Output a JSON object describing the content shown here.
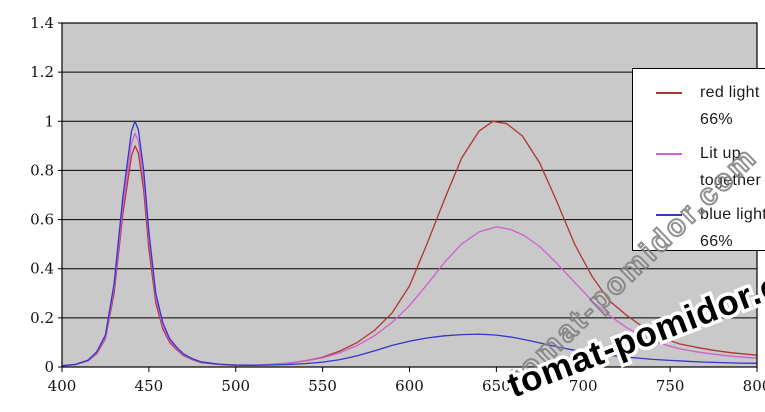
{
  "watermarks": {
    "outline_text": "tomat-pomidor.com",
    "solid_text": "tomat-pomidor.com"
  },
  "legend": {
    "items": [
      {
        "name": "red light 66%",
        "line1": "red light",
        "line2": "66%",
        "color": "#b03434"
      },
      {
        "name": "Lit up together",
        "line1": "Lit up",
        "line2": "together",
        "color": "#d05fd0"
      },
      {
        "name": "blue light 66%",
        "line1": "blue light",
        "line2": "66%",
        "color": "#3535c8"
      }
    ]
  },
  "chart_data": {
    "type": "line",
    "title": "",
    "xlabel": "",
    "ylabel": "",
    "xlim": [
      400,
      800
    ],
    "ylim": [
      0,
      1.4
    ],
    "x_ticks": [
      400,
      450,
      500,
      550,
      600,
      650,
      700,
      750,
      800
    ],
    "x_tick_labels": [
      "400",
      "450",
      "500",
      "550",
      "600",
      "650",
      "700",
      "750",
      "800"
    ],
    "y_ticks": [
      0,
      0.2,
      0.4,
      0.6,
      0.8,
      1,
      1.2,
      1.4
    ],
    "y_tick_labels": [
      "0",
      "0.2",
      "0.4",
      "0.6",
      "0.8",
      "1",
      "1.2",
      "1.4"
    ],
    "grid": "horizontal",
    "plot_bg": "#c9c9c9",
    "axis_color": "#000000",
    "legend_position": "right-overlay",
    "series": [
      {
        "name": "red light 66%",
        "color": "#b03434",
        "points": [
          [
            400,
            0.005
          ],
          [
            408,
            0.01
          ],
          [
            415,
            0.025
          ],
          [
            420,
            0.055
          ],
          [
            425,
            0.115
          ],
          [
            430,
            0.3
          ],
          [
            435,
            0.62
          ],
          [
            440,
            0.86
          ],
          [
            442,
            0.9
          ],
          [
            444,
            0.87
          ],
          [
            447,
            0.72
          ],
          [
            450,
            0.48
          ],
          [
            454,
            0.26
          ],
          [
            458,
            0.155
          ],
          [
            462,
            0.1
          ],
          [
            466,
            0.07
          ],
          [
            470,
            0.046
          ],
          [
            475,
            0.03
          ],
          [
            480,
            0.018
          ],
          [
            490,
            0.01
          ],
          [
            500,
            0.007
          ],
          [
            510,
            0.007
          ],
          [
            520,
            0.01
          ],
          [
            530,
            0.016
          ],
          [
            540,
            0.025
          ],
          [
            550,
            0.04
          ],
          [
            560,
            0.065
          ],
          [
            570,
            0.1
          ],
          [
            580,
            0.15
          ],
          [
            590,
            0.22
          ],
          [
            600,
            0.33
          ],
          [
            610,
            0.5
          ],
          [
            620,
            0.68
          ],
          [
            630,
            0.85
          ],
          [
            640,
            0.96
          ],
          [
            648,
            1.0
          ],
          [
            656,
            0.99
          ],
          [
            665,
            0.94
          ],
          [
            675,
            0.83
          ],
          [
            685,
            0.67
          ],
          [
            695,
            0.5
          ],
          [
            705,
            0.37
          ],
          [
            715,
            0.27
          ],
          [
            725,
            0.21
          ],
          [
            735,
            0.16
          ],
          [
            745,
            0.12
          ],
          [
            755,
            0.095
          ],
          [
            765,
            0.08
          ],
          [
            775,
            0.068
          ],
          [
            785,
            0.058
          ],
          [
            800,
            0.048
          ]
        ]
      },
      {
        "name": "Lit up together",
        "color": "#d05fd0",
        "points": [
          [
            400,
            0.005
          ],
          [
            408,
            0.01
          ],
          [
            415,
            0.026
          ],
          [
            420,
            0.058
          ],
          [
            425,
            0.12
          ],
          [
            430,
            0.32
          ],
          [
            435,
            0.65
          ],
          [
            440,
            0.91
          ],
          [
            442,
            0.95
          ],
          [
            444,
            0.92
          ],
          [
            447,
            0.76
          ],
          [
            450,
            0.52
          ],
          [
            454,
            0.28
          ],
          [
            458,
            0.165
          ],
          [
            462,
            0.107
          ],
          [
            466,
            0.074
          ],
          [
            470,
            0.049
          ],
          [
            475,
            0.032
          ],
          [
            480,
            0.02
          ],
          [
            490,
            0.011
          ],
          [
            500,
            0.008
          ],
          [
            510,
            0.008
          ],
          [
            520,
            0.011
          ],
          [
            530,
            0.016
          ],
          [
            540,
            0.024
          ],
          [
            550,
            0.037
          ],
          [
            560,
            0.058
          ],
          [
            570,
            0.088
          ],
          [
            580,
            0.128
          ],
          [
            590,
            0.182
          ],
          [
            600,
            0.25
          ],
          [
            610,
            0.335
          ],
          [
            620,
            0.425
          ],
          [
            630,
            0.5
          ],
          [
            640,
            0.55
          ],
          [
            650,
            0.57
          ],
          [
            658,
            0.56
          ],
          [
            666,
            0.535
          ],
          [
            675,
            0.49
          ],
          [
            685,
            0.42
          ],
          [
            695,
            0.345
          ],
          [
            705,
            0.27
          ],
          [
            715,
            0.21
          ],
          [
            725,
            0.16
          ],
          [
            735,
            0.123
          ],
          [
            745,
            0.095
          ],
          [
            755,
            0.075
          ],
          [
            765,
            0.062
          ],
          [
            775,
            0.052
          ],
          [
            785,
            0.044
          ],
          [
            800,
            0.036
          ]
        ]
      },
      {
        "name": "blue light 66%",
        "color": "#3535c8",
        "points": [
          [
            400,
            0.005
          ],
          [
            408,
            0.011
          ],
          [
            415,
            0.028
          ],
          [
            420,
            0.062
          ],
          [
            425,
            0.13
          ],
          [
            430,
            0.34
          ],
          [
            435,
            0.69
          ],
          [
            440,
            0.96
          ],
          [
            442,
            1.0
          ],
          [
            444,
            0.965
          ],
          [
            447,
            0.8
          ],
          [
            450,
            0.55
          ],
          [
            454,
            0.3
          ],
          [
            458,
            0.18
          ],
          [
            462,
            0.115
          ],
          [
            466,
            0.08
          ],
          [
            470,
            0.053
          ],
          [
            475,
            0.034
          ],
          [
            480,
            0.021
          ],
          [
            490,
            0.012
          ],
          [
            500,
            0.008
          ],
          [
            510,
            0.007
          ],
          [
            520,
            0.008
          ],
          [
            530,
            0.01
          ],
          [
            540,
            0.014
          ],
          [
            550,
            0.02
          ],
          [
            560,
            0.03
          ],
          [
            570,
            0.046
          ],
          [
            580,
            0.066
          ],
          [
            590,
            0.088
          ],
          [
            600,
            0.105
          ],
          [
            610,
            0.118
          ],
          [
            620,
            0.127
          ],
          [
            630,
            0.132
          ],
          [
            640,
            0.134
          ],
          [
            650,
            0.13
          ],
          [
            660,
            0.12
          ],
          [
            670,
            0.106
          ],
          [
            680,
            0.09
          ],
          [
            690,
            0.075
          ],
          [
            700,
            0.062
          ],
          [
            710,
            0.052
          ],
          [
            720,
            0.044
          ],
          [
            730,
            0.037
          ],
          [
            740,
            0.031
          ],
          [
            750,
            0.027
          ],
          [
            760,
            0.023
          ],
          [
            770,
            0.02
          ],
          [
            780,
            0.018
          ],
          [
            790,
            0.016
          ],
          [
            800,
            0.015
          ]
        ]
      }
    ]
  }
}
